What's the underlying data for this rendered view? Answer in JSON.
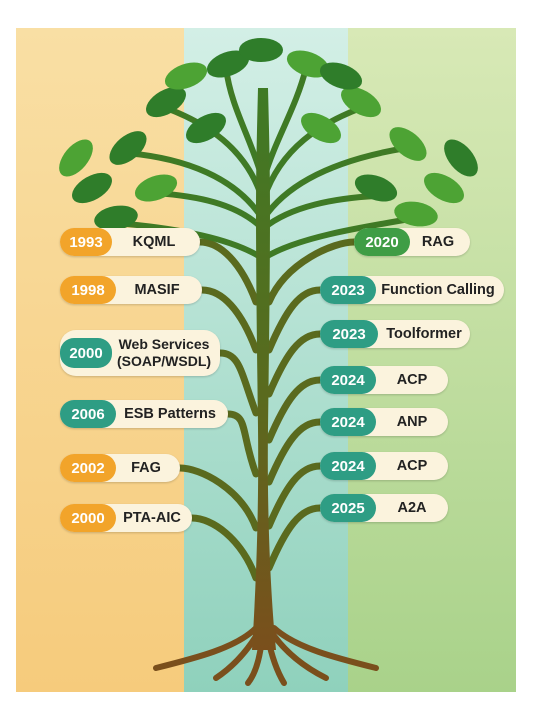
{
  "colors": {
    "trunk": "#5a6a1e",
    "trunk_base": "#7a4f1c",
    "leaf": "#4da334",
    "leaf_dark": "#2f7d2a",
    "pill_bg": "#fbf3dd",
    "year_yellow": "#f2a42a",
    "year_teal": "#2e9d84",
    "year_green": "#3f9d45"
  },
  "left_items": [
    {
      "year": "1993",
      "label": "KQML",
      "color": "yellow"
    },
    {
      "year": "1998",
      "label": "MASIF",
      "color": "yellow"
    },
    {
      "year": "2000",
      "label": "Web Services\n(SOAP/WSDL)",
      "color": "teal"
    },
    {
      "year": "2006",
      "label": "ESB Patterns",
      "color": "teal"
    },
    {
      "year": "2002",
      "label": "FAG",
      "color": "yellow"
    },
    {
      "year": "2000",
      "label": "PTA-AIC",
      "color": "yellow"
    }
  ],
  "right_items": [
    {
      "year": "2020",
      "label": "RAG",
      "color": "green"
    },
    {
      "year": "2023",
      "label": "Function Calling",
      "color": "teal"
    },
    {
      "year": "2023",
      "label": "Toolformer",
      "color": "teal"
    },
    {
      "year": "2024",
      "label": "ACP",
      "color": "teal"
    },
    {
      "year": "2024",
      "label": "ANP",
      "color": "teal"
    },
    {
      "year": "2024",
      "label": "ACP",
      "color": "teal"
    },
    {
      "year": "2025",
      "label": "A2A",
      "color": "teal"
    }
  ]
}
